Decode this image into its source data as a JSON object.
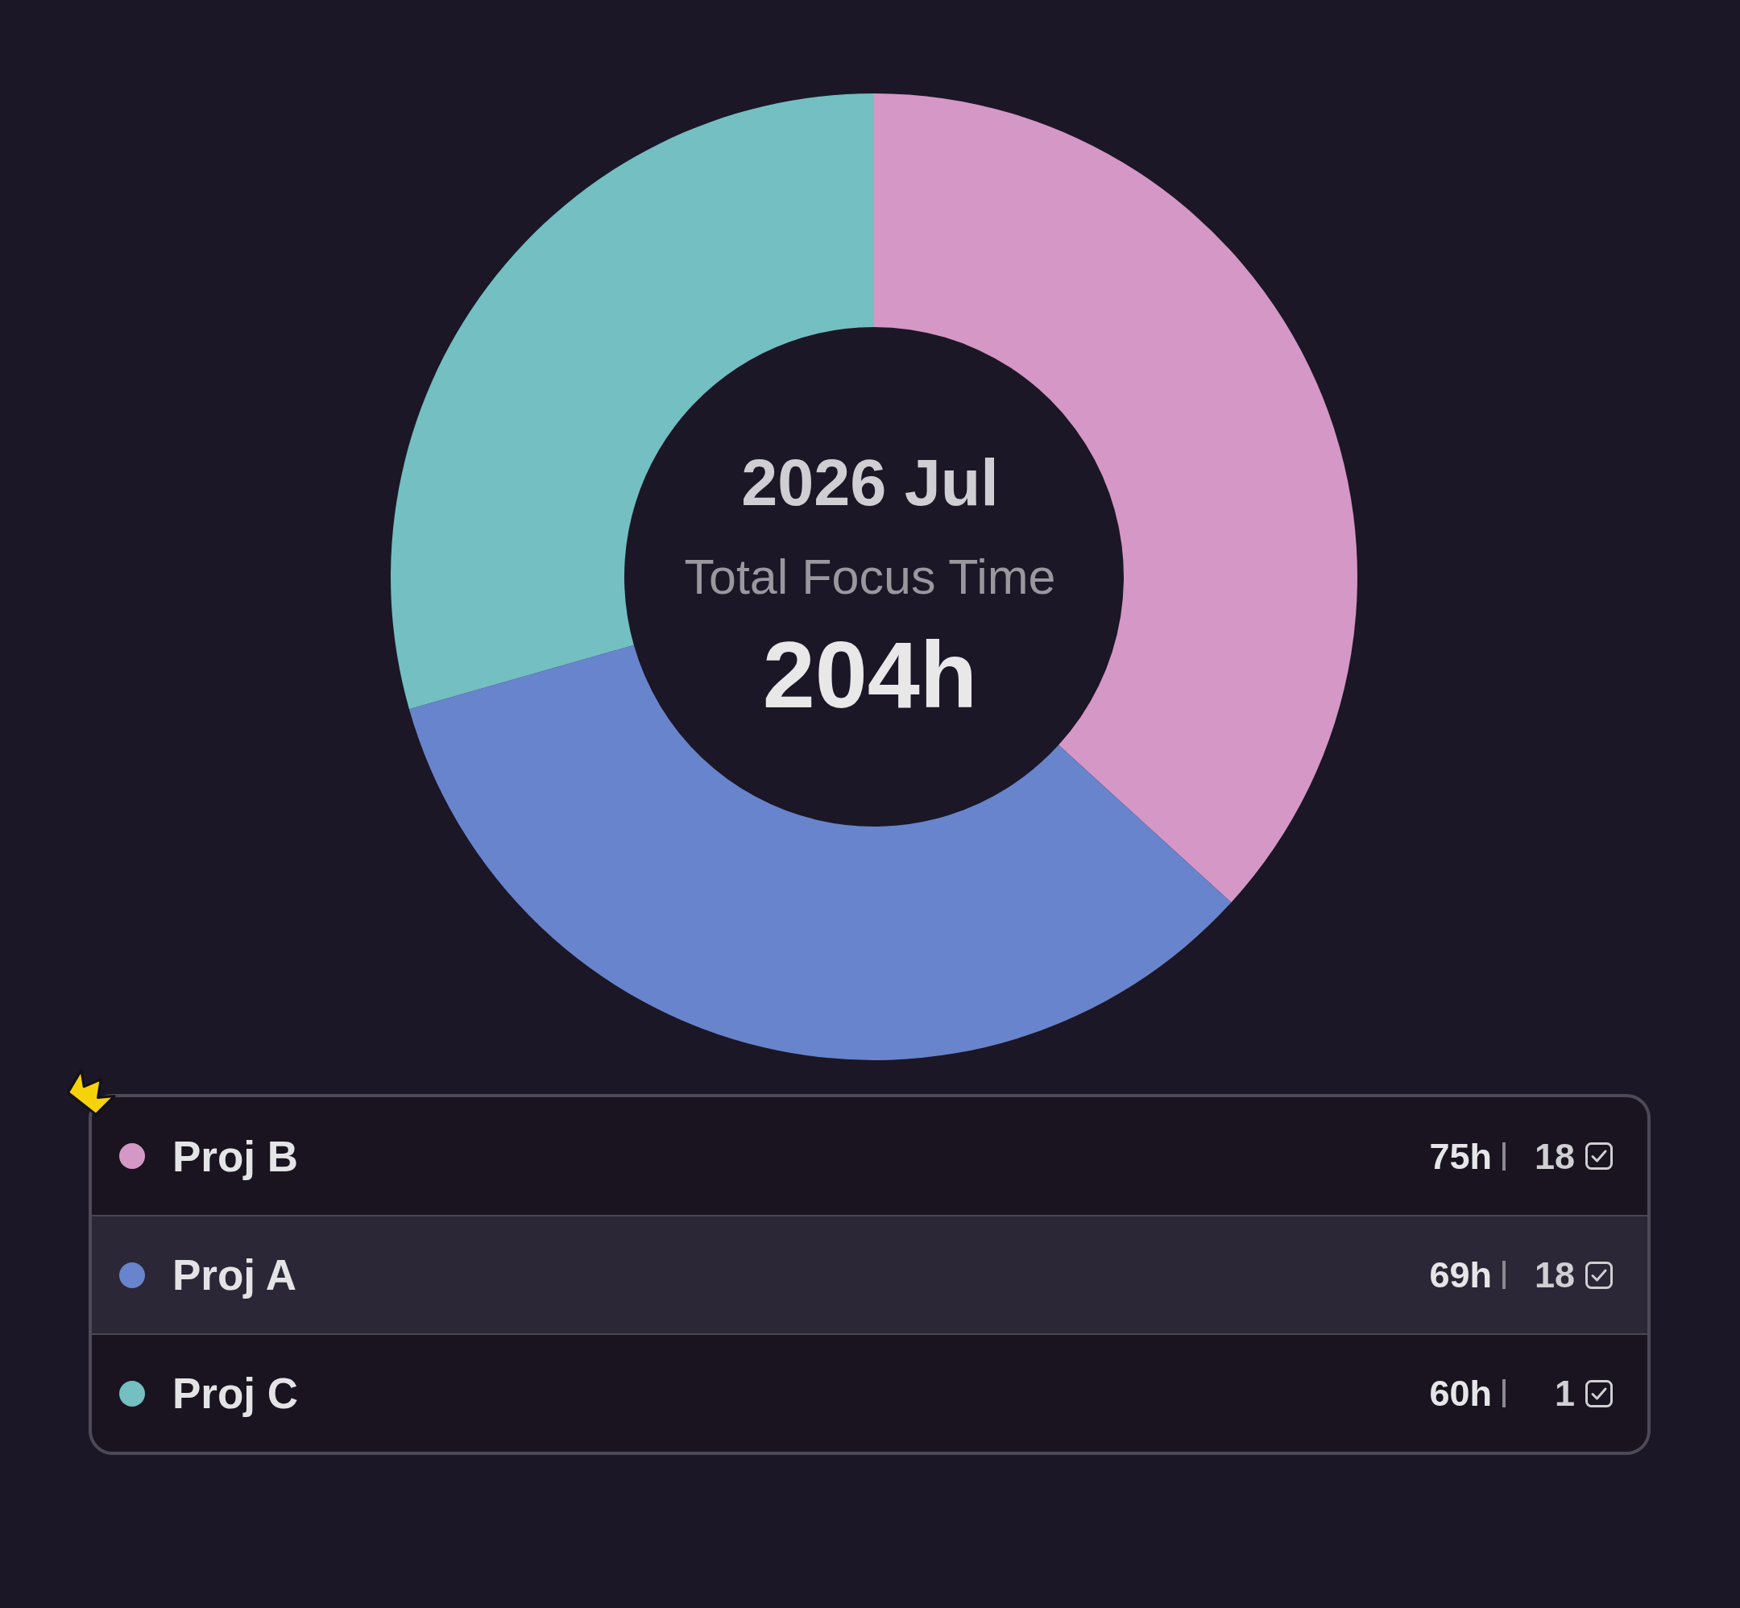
{
  "chart_data": {
    "type": "donut",
    "title": "2026 Jul",
    "subtitle": "Total Focus Time",
    "annotations": [
      "204h",
      {
        "text": "18",
        "x": "Proj B"
      },
      {
        "text": "18",
        "x": "Proj A"
      },
      {
        "text": "1",
        "x": "Proj C"
      }
    ],
    "categories": [
      "Proj B",
      "Proj A",
      "Proj C"
    ],
    "values": [
      75,
      69,
      60
    ],
    "colors": [
      "#d597c6",
      "#6884cc",
      "#73bfc2"
    ],
    "value_labels": [
      "75h",
      "69h",
      "60h"
    ],
    "legend": "bottom"
  }
}
